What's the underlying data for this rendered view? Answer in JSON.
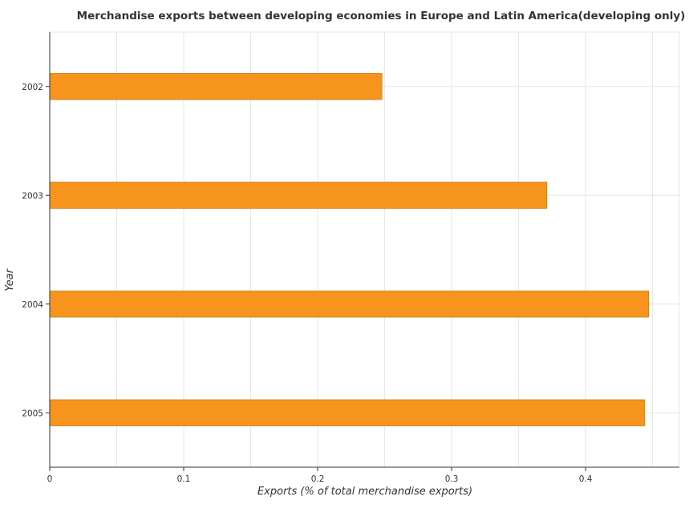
{
  "chart_data": {
    "type": "bar",
    "orientation": "horizontal",
    "title": "Merchandise exports between developing economies in Europe and Latin America(developing only)",
    "xlabel": "Exports (% of total merchandise exports)",
    "ylabel": "Year",
    "categories": [
      "2002",
      "2003",
      "2004",
      "2005"
    ],
    "values": [
      0.248,
      0.371,
      0.447,
      0.444
    ],
    "xlim": [
      0,
      0.47
    ],
    "xticks": [
      0,
      0.1,
      0.2,
      0.3,
      0.4
    ],
    "xtick_labels": [
      "0",
      "0.1",
      "0.2",
      "0.3",
      "0.4"
    ],
    "grid": true,
    "bar_color": "#f7941d",
    "bar_edge_color": "#cc7a14"
  }
}
